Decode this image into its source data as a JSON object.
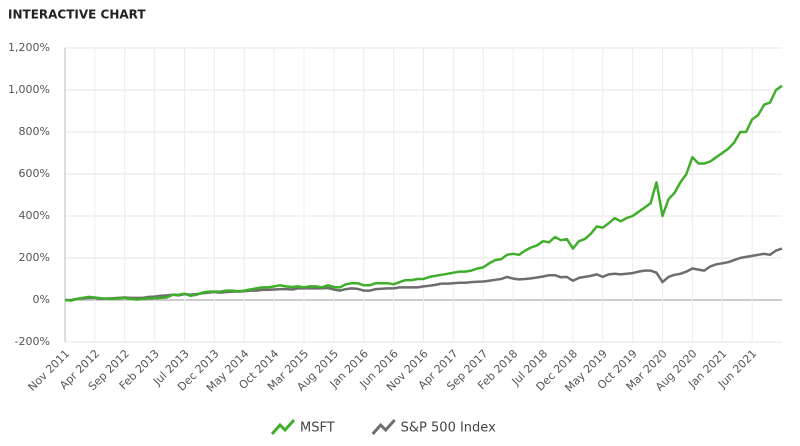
{
  "chart_data": {
    "type": "line",
    "title": "INTERACTIVE CHART",
    "categories": [
      "Nov 2011",
      null,
      null,
      null,
      null,
      "Apr 2012",
      null,
      null,
      null,
      null,
      "Sep 2012",
      null,
      null,
      null,
      null,
      "Feb 2013",
      null,
      null,
      null,
      null,
      "Jul 2013",
      null,
      null,
      null,
      null,
      "Dec 2013",
      null,
      null,
      null,
      null,
      "May 2014",
      null,
      null,
      null,
      null,
      "Oct 2014",
      null,
      null,
      null,
      null,
      "Mar 2015",
      null,
      null,
      null,
      null,
      "Aug 2015",
      null,
      null,
      null,
      null,
      "Jan 2016",
      null,
      null,
      null,
      null,
      "Jun 2016",
      null,
      null,
      null,
      null,
      "Nov 2016",
      null,
      null,
      null,
      null,
      "Apr 2017",
      null,
      null,
      null,
      null,
      "Sep 2017",
      null,
      null,
      null,
      null,
      "Feb 2018",
      null,
      null,
      null,
      null,
      "Jul 2018",
      null,
      null,
      null,
      null,
      "Dec 2018",
      null,
      null,
      null,
      null,
      "May 2019",
      null,
      null,
      null,
      null,
      "Oct 2019",
      null,
      null,
      null,
      null,
      "Mar 2020",
      null,
      null,
      null,
      null,
      "Aug 2020",
      null,
      null,
      null,
      null,
      "Jan 2021",
      null,
      null,
      null,
      null,
      "Jun 2021",
      null,
      null,
      null,
      null,
      null
    ],
    "series": [
      {
        "name": "MSFT",
        "color": "#3fae2a",
        "values": [
          0,
          -3,
          5,
          10,
          15,
          12,
          8,
          6,
          5,
          8,
          10,
          5,
          2,
          5,
          8,
          8,
          10,
          12,
          25,
          25,
          30,
          20,
          25,
          35,
          40,
          40,
          40,
          45,
          45,
          42,
          45,
          50,
          55,
          60,
          60,
          65,
          70,
          65,
          62,
          65,
          60,
          65,
          65,
          60,
          70,
          62,
          60,
          75,
          80,
          80,
          70,
          70,
          80,
          80,
          80,
          75,
          85,
          95,
          95,
          100,
          100,
          110,
          115,
          120,
          125,
          130,
          135,
          135,
          140,
          150,
          155,
          175,
          190,
          195,
          215,
          220,
          215,
          235,
          250,
          260,
          280,
          275,
          300,
          285,
          290,
          245,
          280,
          290,
          315,
          350,
          345,
          365,
          390,
          375,
          390,
          400,
          420,
          440,
          460,
          560,
          400,
          480,
          510,
          560,
          600,
          680,
          650,
          650,
          660,
          680,
          700,
          720,
          750,
          800,
          800,
          860,
          880,
          930,
          940,
          1000,
          1020
        ]
      },
      {
        "name": "S&P 500 Index",
        "color": "#6d6d6d",
        "values": [
          0,
          0,
          5,
          8,
          10,
          10,
          5,
          7,
          8,
          10,
          12,
          10,
          10,
          10,
          15,
          16,
          20,
          22,
          25,
          22,
          28,
          25,
          28,
          32,
          35,
          38,
          35,
          38,
          40,
          40,
          42,
          45,
          45,
          48,
          48,
          50,
          52,
          52,
          50,
          55,
          55,
          55,
          56,
          55,
          57,
          50,
          45,
          52,
          55,
          53,
          45,
          45,
          52,
          54,
          55,
          55,
          60,
          60,
          60,
          60,
          65,
          68,
          72,
          78,
          78,
          80,
          82,
          82,
          85,
          87,
          88,
          92,
          96,
          100,
          110,
          102,
          98,
          100,
          103,
          107,
          112,
          118,
          118,
          108,
          110,
          92,
          105,
          110,
          115,
          122,
          110,
          122,
          125,
          122,
          125,
          128,
          135,
          140,
          140,
          130,
          85,
          110,
          120,
          125,
          135,
          150,
          145,
          140,
          160,
          170,
          175,
          180,
          190,
          200,
          205,
          210,
          215,
          220,
          215,
          235,
          245
        ]
      }
    ],
    "ylim": [
      -200,
      1200
    ],
    "yticks": [
      {
        "value": -200,
        "label": "-200%"
      },
      {
        "value": 0,
        "label": "0%"
      },
      {
        "value": 200,
        "label": "200%"
      },
      {
        "value": 400,
        "label": "400%"
      },
      {
        "value": 600,
        "label": "600%"
      },
      {
        "value": 800,
        "label": "800%"
      },
      {
        "value": 1000,
        "label": "1,000%"
      },
      {
        "value": 1200,
        "label": "1,200%"
      }
    ],
    "grid": true
  }
}
